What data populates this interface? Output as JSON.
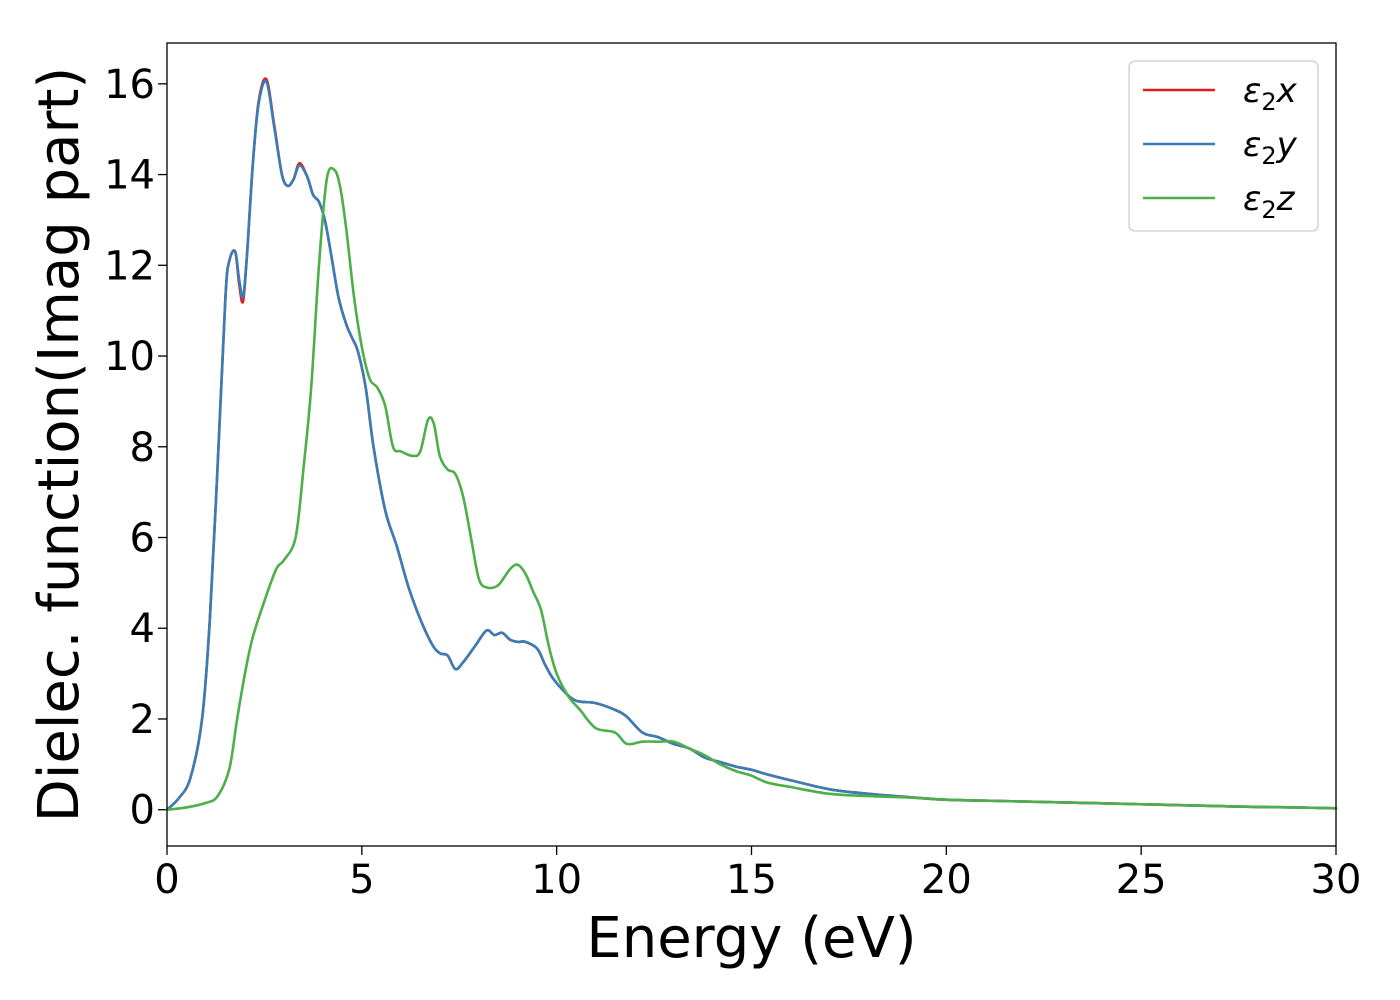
{
  "chart_data": {
    "type": "line",
    "xlabel": "Energy (eV)",
    "ylabel": "Dielec. function(Imag part)",
    "xlim": [
      0,
      30
    ],
    "ylim": [
      -0.8,
      16.9
    ],
    "xticks": [
      0,
      5,
      10,
      15,
      20,
      25,
      30
    ],
    "yticks": [
      0,
      2,
      4,
      6,
      8,
      10,
      12,
      14,
      16
    ],
    "grid": false,
    "legend_position": "top-right",
    "series": [
      {
        "name": "ε₂x",
        "legend_base": "ε",
        "legend_sub": "2",
        "legend_var": "x",
        "color": "#e41a1c",
        "x": [
          0,
          0.3,
          0.6,
          0.9,
          1.1,
          1.3,
          1.5,
          1.6,
          1.75,
          1.85,
          1.95,
          2.05,
          2.2,
          2.35,
          2.55,
          2.75,
          2.95,
          3.1,
          3.25,
          3.4,
          3.6,
          3.75,
          3.9,
          4.05,
          4.2,
          4.4,
          4.6,
          4.75,
          4.9,
          5.1,
          5.3,
          5.6,
          5.9,
          6.2,
          6.5,
          6.8,
          7.0,
          7.2,
          7.4,
          7.6,
          7.9,
          8.2,
          8.4,
          8.6,
          8.8,
          9.0,
          9.2,
          9.5,
          9.7,
          9.9,
          10.2,
          10.5,
          11.0,
          11.5,
          11.8,
          12.2,
          12.6,
          13.0,
          13.4,
          13.8,
          14.2,
          14.6,
          15.0,
          15.4,
          16.0,
          17.0,
          18.0,
          19.0,
          20.0,
          21.0,
          22.0,
          23.0,
          24.0,
          25.0,
          26.0,
          27.0,
          28.0,
          29.0,
          30.0
        ],
        "y": [
          0.0,
          0.25,
          0.7,
          2.0,
          4.2,
          7.6,
          11.3,
          12.1,
          12.3,
          11.6,
          11.2,
          12.2,
          14.2,
          15.6,
          16.1,
          15.1,
          14.0,
          13.75,
          13.9,
          14.25,
          13.95,
          13.55,
          13.4,
          13.0,
          12.3,
          11.3,
          10.7,
          10.4,
          10.1,
          9.3,
          8.0,
          6.6,
          5.8,
          4.9,
          4.2,
          3.65,
          3.45,
          3.4,
          3.1,
          3.25,
          3.6,
          3.95,
          3.85,
          3.9,
          3.75,
          3.7,
          3.7,
          3.55,
          3.2,
          2.9,
          2.6,
          2.4,
          2.35,
          2.2,
          2.05,
          1.7,
          1.6,
          1.45,
          1.35,
          1.15,
          1.05,
          0.95,
          0.88,
          0.78,
          0.65,
          0.45,
          0.35,
          0.28,
          0.22,
          0.2,
          0.18,
          0.16,
          0.14,
          0.12,
          0.1,
          0.08,
          0.06,
          0.05,
          0.03
        ]
      },
      {
        "name": "ε₂y",
        "legend_base": "ε",
        "legend_sub": "2",
        "legend_var": "y",
        "color": "#377eb8",
        "x": [
          0,
          0.3,
          0.6,
          0.9,
          1.1,
          1.3,
          1.5,
          1.6,
          1.75,
          1.85,
          1.95,
          2.05,
          2.2,
          2.35,
          2.55,
          2.75,
          2.95,
          3.1,
          3.25,
          3.4,
          3.6,
          3.75,
          3.9,
          4.05,
          4.2,
          4.4,
          4.6,
          4.75,
          4.9,
          5.1,
          5.3,
          5.6,
          5.9,
          6.2,
          6.5,
          6.8,
          7.0,
          7.2,
          7.4,
          7.6,
          7.9,
          8.2,
          8.4,
          8.6,
          8.8,
          9.0,
          9.2,
          9.5,
          9.7,
          9.9,
          10.2,
          10.5,
          11.0,
          11.5,
          11.8,
          12.2,
          12.6,
          13.0,
          13.4,
          13.8,
          14.2,
          14.6,
          15.0,
          15.4,
          16.0,
          17.0,
          18.0,
          19.0,
          20.0,
          21.0,
          22.0,
          23.0,
          24.0,
          25.0,
          26.0,
          27.0,
          28.0,
          29.0,
          30.0
        ],
        "y": [
          0.0,
          0.25,
          0.7,
          2.0,
          4.2,
          7.6,
          11.3,
          12.1,
          12.3,
          11.7,
          11.3,
          12.2,
          14.2,
          15.55,
          16.05,
          15.05,
          14.0,
          13.75,
          13.9,
          14.2,
          13.95,
          13.55,
          13.4,
          13.0,
          12.3,
          11.3,
          10.7,
          10.4,
          10.1,
          9.3,
          8.0,
          6.6,
          5.8,
          4.9,
          4.2,
          3.65,
          3.45,
          3.4,
          3.1,
          3.25,
          3.6,
          3.95,
          3.85,
          3.9,
          3.75,
          3.7,
          3.7,
          3.55,
          3.2,
          2.9,
          2.6,
          2.4,
          2.35,
          2.2,
          2.05,
          1.7,
          1.6,
          1.45,
          1.35,
          1.15,
          1.05,
          0.95,
          0.88,
          0.78,
          0.65,
          0.45,
          0.35,
          0.28,
          0.22,
          0.2,
          0.18,
          0.16,
          0.14,
          0.12,
          0.1,
          0.08,
          0.06,
          0.05,
          0.03
        ]
      },
      {
        "name": "ε₂z",
        "legend_base": "ε",
        "legend_sub": "2",
        "legend_var": "z",
        "color": "#4daf4a",
        "x": [
          0,
          0.5,
          1.0,
          1.3,
          1.6,
          1.8,
          2.0,
          2.2,
          2.5,
          2.8,
          3.0,
          3.3,
          3.5,
          3.7,
          3.9,
          4.1,
          4.3,
          4.45,
          4.6,
          4.8,
          5.0,
          5.2,
          5.4,
          5.6,
          5.8,
          6.0,
          6.3,
          6.5,
          6.7,
          6.85,
          7.0,
          7.2,
          7.4,
          7.6,
          7.8,
          8.0,
          8.2,
          8.5,
          8.8,
          9.0,
          9.2,
          9.4,
          9.6,
          9.8,
          10.0,
          10.3,
          10.6,
          11.0,
          11.5,
          11.8,
          12.2,
          12.6,
          13.0,
          13.4,
          13.8,
          14.2,
          14.6,
          15.0,
          15.4,
          16.0,
          17.0,
          18.0,
          19.0,
          20.0,
          21.0,
          22.0,
          23.0,
          24.0,
          25.0,
          26.0,
          27.0,
          28.0,
          29.0,
          30.0
        ],
        "y": [
          0.0,
          0.05,
          0.15,
          0.3,
          0.9,
          2.0,
          3.0,
          3.8,
          4.6,
          5.3,
          5.5,
          6.0,
          7.5,
          9.3,
          12.0,
          13.9,
          14.1,
          13.7,
          12.8,
          11.3,
          10.2,
          9.5,
          9.3,
          8.9,
          8.0,
          7.9,
          7.8,
          7.9,
          8.6,
          8.5,
          7.8,
          7.5,
          7.4,
          6.9,
          6.0,
          5.1,
          4.9,
          4.95,
          5.3,
          5.4,
          5.2,
          4.8,
          4.4,
          3.6,
          3.0,
          2.5,
          2.2,
          1.8,
          1.7,
          1.45,
          1.5,
          1.5,
          1.5,
          1.35,
          1.2,
          1.0,
          0.85,
          0.75,
          0.6,
          0.5,
          0.35,
          0.3,
          0.27,
          0.22,
          0.2,
          0.18,
          0.16,
          0.14,
          0.12,
          0.1,
          0.08,
          0.06,
          0.05,
          0.03
        ]
      }
    ]
  }
}
